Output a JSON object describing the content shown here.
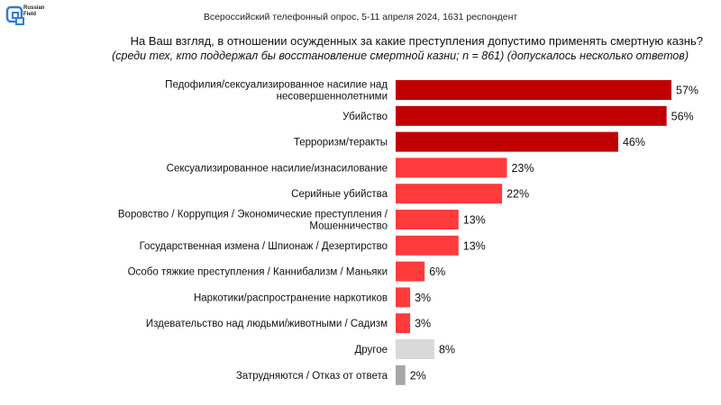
{
  "header": {
    "logo_text": "Russian\nField",
    "survey": "Всероссийский телефонный опрос, 5-11 апреля 2024, 1631 респондент",
    "question": "На Ваш взгляд, в отношении осужденных за какие преступления допустимо применять смертную казнь?",
    "subtitle": "(среди тех, кто поддержал бы восстановление смертной казни; n = 861) (допускалось несколько ответов)"
  },
  "colors": {
    "dark_red": "#c00000",
    "red": "#ff3b3b",
    "light_gray": "#d9d9d9",
    "gray": "#a6a6a6",
    "brand": "#2f7fd1"
  },
  "chart_data": {
    "type": "bar",
    "orientation": "horizontal",
    "categories": [
      "Педофилия/сексуализированное насилие над несовершеннолетними",
      "Убийство",
      "Терроризм/теракты",
      "Сексуализированное насилие/изнасилование",
      "Серийные убийства",
      "Воровство / Коррупция / Экономические преступления / Мошенничество",
      "Государственная измена / Шпионаж / Дезертирство",
      "Особо тяжкие преступления / Каннибализм / Маньяки",
      "Наркотики/распространение наркотиков",
      "Издевательство над людьми/животными / Садизм",
      "Другое",
      "Затрудняются / Отказ от ответа"
    ],
    "category_lines": [
      [
        "Педофилия/сексуализированное насилие над",
        "несовершеннолетними"
      ],
      [
        "Убийство"
      ],
      [
        "Терроризм/теракты"
      ],
      [
        "Сексуализированное насилие/изнасилование"
      ],
      [
        "Серийные убийства"
      ],
      [
        "Воровство / Коррупция / Экономические преступления /",
        "Мошенничество"
      ],
      [
        "Государственная измена / Шпионаж / Дезертирство"
      ],
      [
        "Особо тяжкие преступления / Каннибализм / Маньяки"
      ],
      [
        "Наркотики/распространение наркотиков"
      ],
      [
        "Издевательство над людьми/животными / Садизм"
      ],
      [
        "Другое"
      ],
      [
        "Затрудняются / Отказ от ответа"
      ]
    ],
    "values": [
      57,
      56,
      46,
      23,
      22,
      13,
      13,
      6,
      3,
      3,
      8,
      2
    ],
    "labels": [
      "57%",
      "56%",
      "46%",
      "23%",
      "22%",
      "13%",
      "13%",
      "6%",
      "3%",
      "3%",
      "8%",
      "2%"
    ],
    "bar_colors": [
      "#c00000",
      "#c00000",
      "#c00000",
      "#ff3b3b",
      "#ff3b3b",
      "#ff3b3b",
      "#ff3b3b",
      "#ff3b3b",
      "#ff3b3b",
      "#ff3b3b",
      "#d9d9d9",
      "#a6a6a6"
    ],
    "xlim": [
      0,
      57
    ],
    "grid": false,
    "legend": "none"
  }
}
